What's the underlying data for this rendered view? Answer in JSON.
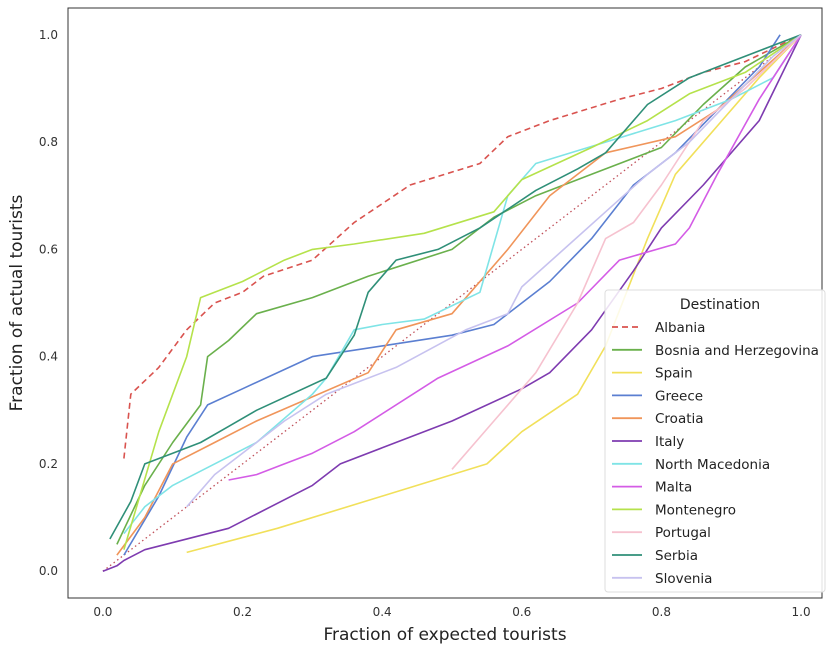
{
  "chart_data": {
    "type": "line",
    "title": "",
    "xlabel": "Fraction of expected tourists",
    "ylabel": "Fraction of actual tourists",
    "xlim": [
      -0.05,
      1.03
    ],
    "ylim": [
      -0.05,
      1.05
    ],
    "xticks": [
      "0.0",
      "0.2",
      "0.4",
      "0.6",
      "0.8",
      "1.0"
    ],
    "yticks": [
      "0.0",
      "0.2",
      "0.4",
      "0.6",
      "0.8",
      "1.0"
    ],
    "grid": false,
    "legend": {
      "title": "Destination",
      "placement": "lower-right"
    },
    "reference_line": {
      "style": "dotted",
      "color": "#c0505a",
      "points": [
        [
          0,
          0
        ],
        [
          1,
          1
        ]
      ]
    },
    "series": [
      {
        "name": "Albania",
        "color": "#d9534f",
        "dash": "6,4",
        "points": [
          [
            0.03,
            0.21
          ],
          [
            0.04,
            0.33
          ],
          [
            0.08,
            0.38
          ],
          [
            0.12,
            0.45
          ],
          [
            0.16,
            0.5
          ],
          [
            0.2,
            0.52
          ],
          [
            0.23,
            0.55
          ],
          [
            0.3,
            0.58
          ],
          [
            0.36,
            0.65
          ],
          [
            0.44,
            0.72
          ],
          [
            0.54,
            0.76
          ],
          [
            0.58,
            0.81
          ],
          [
            0.64,
            0.84
          ],
          [
            0.74,
            0.88
          ],
          [
            0.8,
            0.9
          ],
          [
            0.86,
            0.93
          ],
          [
            0.92,
            0.95
          ],
          [
            1.0,
            1.0
          ]
        ]
      },
      {
        "name": "Bosnia and Herzegovina",
        "color": "#6ab04c",
        "points": [
          [
            0.02,
            0.05
          ],
          [
            0.06,
            0.16
          ],
          [
            0.1,
            0.24
          ],
          [
            0.14,
            0.31
          ],
          [
            0.15,
            0.4
          ],
          [
            0.18,
            0.43
          ],
          [
            0.22,
            0.48
          ],
          [
            0.3,
            0.51
          ],
          [
            0.38,
            0.55
          ],
          [
            0.5,
            0.6
          ],
          [
            0.56,
            0.66
          ],
          [
            0.62,
            0.7
          ],
          [
            0.7,
            0.74
          ],
          [
            0.8,
            0.79
          ],
          [
            0.86,
            0.87
          ],
          [
            0.92,
            0.94
          ],
          [
            1.0,
            1.0
          ]
        ]
      },
      {
        "name": "Spain",
        "color": "#f1e05a",
        "points": [
          [
            0.12,
            0.035
          ],
          [
            0.25,
            0.08
          ],
          [
            0.4,
            0.14
          ],
          [
            0.55,
            0.2
          ],
          [
            0.6,
            0.26
          ],
          [
            0.68,
            0.33
          ],
          [
            0.72,
            0.42
          ],
          [
            0.78,
            0.62
          ],
          [
            0.82,
            0.74
          ],
          [
            0.88,
            0.83
          ],
          [
            0.94,
            0.92
          ],
          [
            1.0,
            1.0
          ]
        ]
      },
      {
        "name": "Greece",
        "color": "#5b7fd1",
        "points": [
          [
            0.03,
            0.03
          ],
          [
            0.08,
            0.14
          ],
          [
            0.12,
            0.25
          ],
          [
            0.15,
            0.31
          ],
          [
            0.2,
            0.34
          ],
          [
            0.3,
            0.4
          ],
          [
            0.4,
            0.42
          ],
          [
            0.5,
            0.44
          ],
          [
            0.56,
            0.46
          ],
          [
            0.6,
            0.5
          ],
          [
            0.64,
            0.54
          ],
          [
            0.7,
            0.62
          ],
          [
            0.76,
            0.72
          ],
          [
            0.82,
            0.78
          ],
          [
            0.88,
            0.86
          ],
          [
            0.94,
            0.94
          ],
          [
            0.97,
            1.0
          ]
        ]
      },
      {
        "name": "Croatia",
        "color": "#f0955a",
        "points": [
          [
            0.02,
            0.03
          ],
          [
            0.06,
            0.1
          ],
          [
            0.1,
            0.2
          ],
          [
            0.16,
            0.24
          ],
          [
            0.22,
            0.28
          ],
          [
            0.38,
            0.37
          ],
          [
            0.42,
            0.45
          ],
          [
            0.5,
            0.48
          ],
          [
            0.58,
            0.6
          ],
          [
            0.64,
            0.7
          ],
          [
            0.72,
            0.78
          ],
          [
            0.82,
            0.81
          ],
          [
            0.88,
            0.86
          ],
          [
            1.0,
            1.0
          ]
        ]
      },
      {
        "name": "Italy",
        "color": "#7e3bb0",
        "points": [
          [
            0.0,
            0.0
          ],
          [
            0.02,
            0.01
          ],
          [
            0.03,
            0.02
          ],
          [
            0.06,
            0.04
          ],
          [
            0.18,
            0.08
          ],
          [
            0.3,
            0.16
          ],
          [
            0.34,
            0.2
          ],
          [
            0.4,
            0.23
          ],
          [
            0.5,
            0.28
          ],
          [
            0.6,
            0.34
          ],
          [
            0.64,
            0.37
          ],
          [
            0.7,
            0.45
          ],
          [
            0.76,
            0.56
          ],
          [
            0.8,
            0.64
          ],
          [
            0.86,
            0.72
          ],
          [
            0.94,
            0.84
          ],
          [
            1.0,
            1.0
          ]
        ]
      },
      {
        "name": "North Macedonia",
        "color": "#7fe4e6",
        "points": [
          [
            0.03,
            0.07
          ],
          [
            0.06,
            0.12
          ],
          [
            0.1,
            0.16
          ],
          [
            0.16,
            0.2
          ],
          [
            0.22,
            0.24
          ],
          [
            0.3,
            0.33
          ],
          [
            0.32,
            0.36
          ],
          [
            0.36,
            0.45
          ],
          [
            0.4,
            0.46
          ],
          [
            0.46,
            0.47
          ],
          [
            0.54,
            0.52
          ],
          [
            0.58,
            0.7
          ],
          [
            0.62,
            0.76
          ],
          [
            0.72,
            0.8
          ],
          [
            0.82,
            0.84
          ],
          [
            0.9,
            0.88
          ],
          [
            0.96,
            0.92
          ],
          [
            1.0,
            1.0
          ]
        ]
      },
      {
        "name": "Malta",
        "color": "#d45ce6",
        "points": [
          [
            0.18,
            0.17
          ],
          [
            0.22,
            0.18
          ],
          [
            0.26,
            0.2
          ],
          [
            0.3,
            0.22
          ],
          [
            0.36,
            0.26
          ],
          [
            0.48,
            0.36
          ],
          [
            0.58,
            0.42
          ],
          [
            0.68,
            0.5
          ],
          [
            0.74,
            0.58
          ],
          [
            0.82,
            0.61
          ],
          [
            0.84,
            0.64
          ],
          [
            0.88,
            0.74
          ],
          [
            0.94,
            0.88
          ],
          [
            1.0,
            1.0
          ]
        ]
      },
      {
        "name": "Montenegro",
        "color": "#b5e24b",
        "points": [
          [
            0.03,
            0.04
          ],
          [
            0.08,
            0.26
          ],
          [
            0.12,
            0.4
          ],
          [
            0.14,
            0.51
          ],
          [
            0.2,
            0.54
          ],
          [
            0.26,
            0.58
          ],
          [
            0.3,
            0.6
          ],
          [
            0.36,
            0.61
          ],
          [
            0.46,
            0.63
          ],
          [
            0.56,
            0.67
          ],
          [
            0.6,
            0.73
          ],
          [
            0.7,
            0.79
          ],
          [
            0.78,
            0.84
          ],
          [
            0.84,
            0.89
          ],
          [
            0.92,
            0.93
          ],
          [
            1.0,
            1.0
          ]
        ]
      },
      {
        "name": "Portugal",
        "color": "#f6c2cf",
        "points": [
          [
            0.5,
            0.19
          ],
          [
            0.56,
            0.28
          ],
          [
            0.62,
            0.37
          ],
          [
            0.68,
            0.5
          ],
          [
            0.72,
            0.62
          ],
          [
            0.76,
            0.65
          ],
          [
            0.8,
            0.72
          ],
          [
            0.86,
            0.84
          ],
          [
            0.92,
            0.9
          ],
          [
            1.0,
            1.0
          ]
        ]
      },
      {
        "name": "Serbia",
        "color": "#2f8f78",
        "points": [
          [
            0.01,
            0.06
          ],
          [
            0.04,
            0.13
          ],
          [
            0.06,
            0.2
          ],
          [
            0.1,
            0.22
          ],
          [
            0.14,
            0.24
          ],
          [
            0.18,
            0.27
          ],
          [
            0.22,
            0.3
          ],
          [
            0.32,
            0.36
          ],
          [
            0.36,
            0.44
          ],
          [
            0.38,
            0.52
          ],
          [
            0.42,
            0.58
          ],
          [
            0.48,
            0.6
          ],
          [
            0.54,
            0.64
          ],
          [
            0.62,
            0.71
          ],
          [
            0.68,
            0.75
          ],
          [
            0.72,
            0.78
          ],
          [
            0.78,
            0.87
          ],
          [
            0.84,
            0.92
          ],
          [
            0.9,
            0.95
          ],
          [
            1.0,
            1.0
          ]
        ]
      },
      {
        "name": "Slovenia",
        "color": "#c7c2ef",
        "points": [
          [
            0.12,
            0.12
          ],
          [
            0.16,
            0.18
          ],
          [
            0.22,
            0.24
          ],
          [
            0.26,
            0.28
          ],
          [
            0.32,
            0.33
          ],
          [
            0.42,
            0.38
          ],
          [
            0.52,
            0.45
          ],
          [
            0.58,
            0.48
          ],
          [
            0.6,
            0.53
          ],
          [
            0.66,
            0.6
          ],
          [
            0.72,
            0.67
          ],
          [
            0.78,
            0.74
          ],
          [
            0.84,
            0.8
          ],
          [
            0.9,
            0.88
          ],
          [
            0.96,
            0.96
          ],
          [
            1.0,
            1.0
          ]
        ]
      }
    ]
  }
}
